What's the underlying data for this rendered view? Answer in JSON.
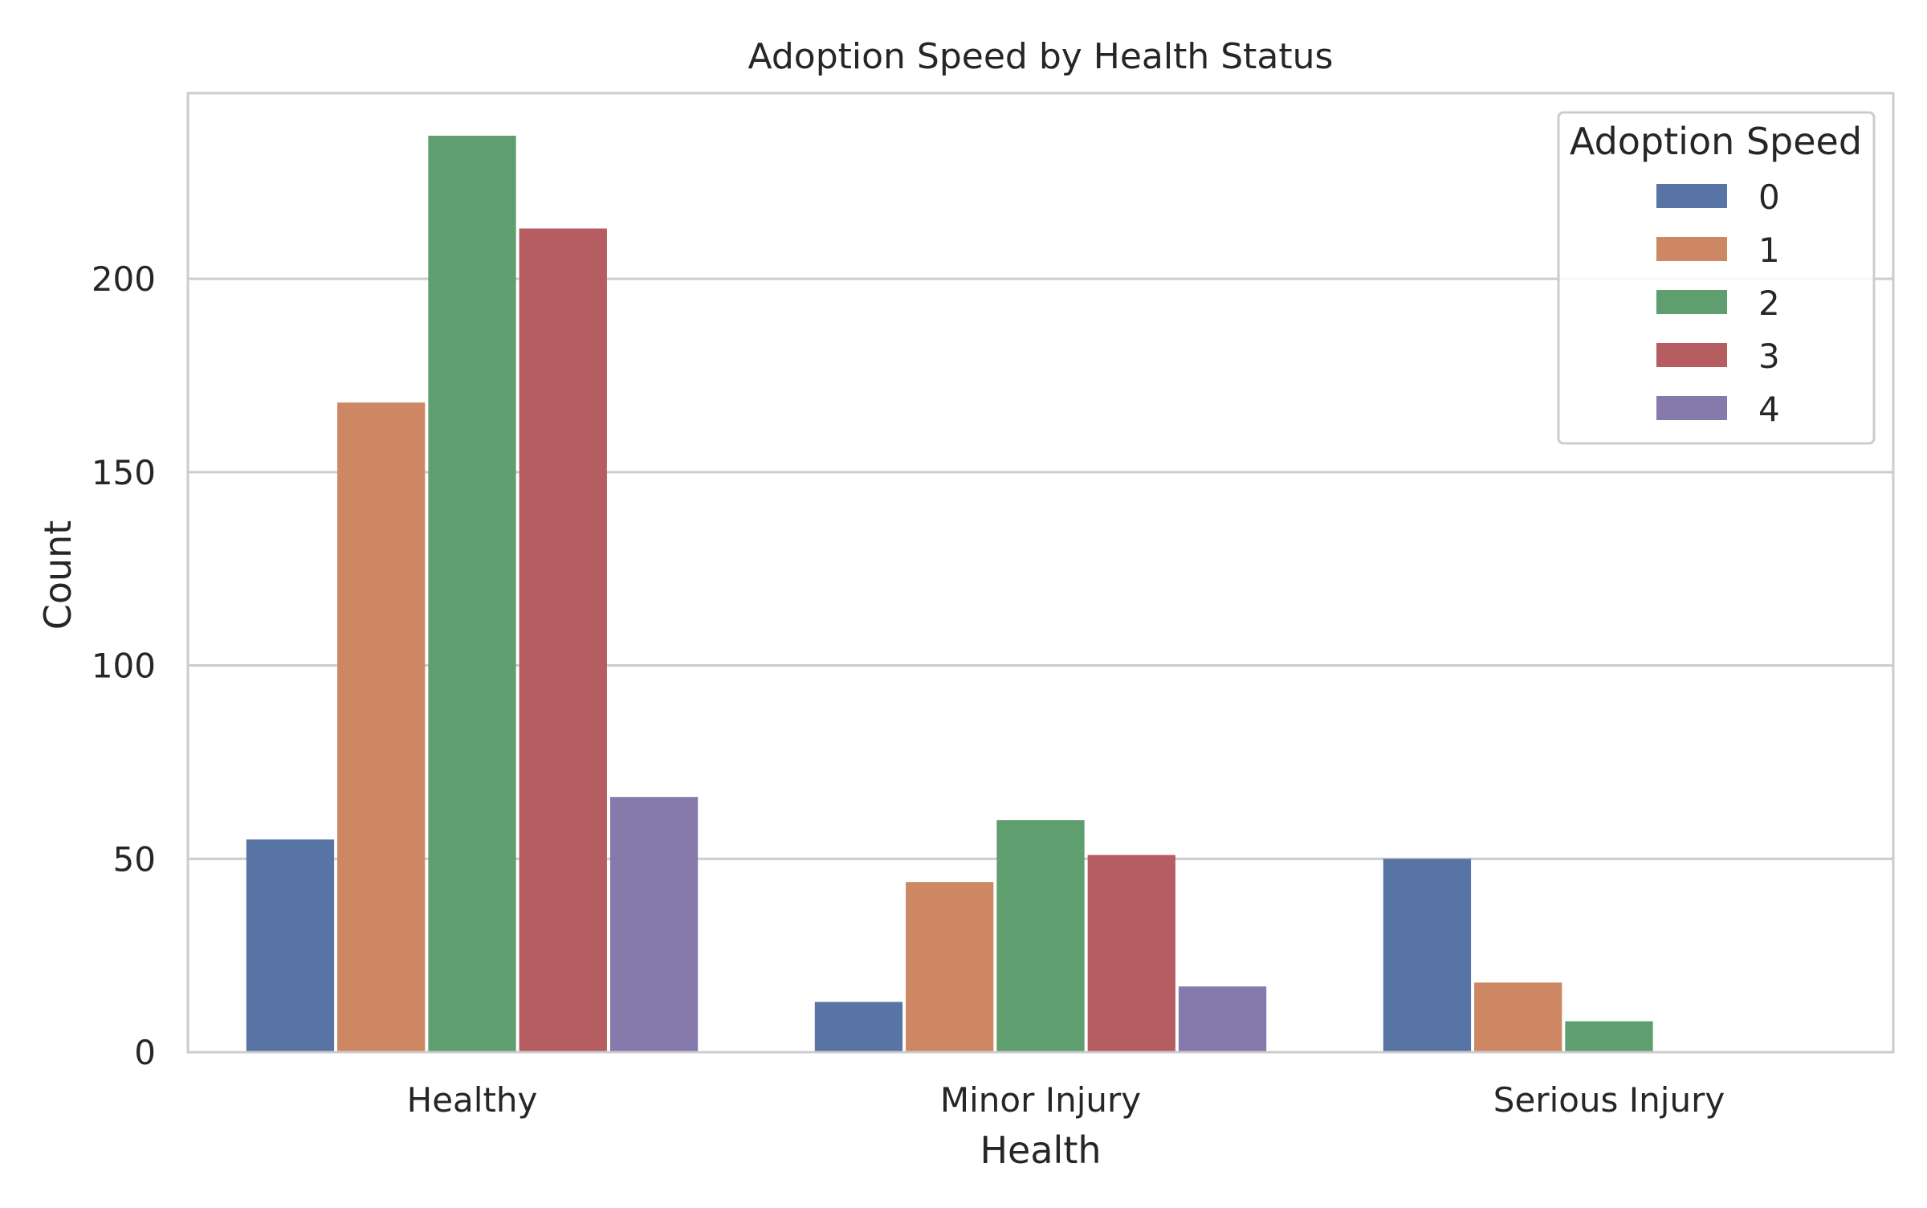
{
  "chart_data": {
    "type": "bar",
    "title": "Adoption Speed by Health Status",
    "xlabel": "Health",
    "ylabel": "Count",
    "categories": [
      "Healthy",
      "Minor Injury",
      "Serious Injury"
    ],
    "ylim": [
      0,
      248
    ],
    "yticks": [
      0,
      50,
      100,
      150,
      200
    ],
    "grid": "horizontal",
    "legend": {
      "title": "Adoption Speed",
      "placement": "top-right"
    },
    "series": [
      {
        "name": "0",
        "color": "#5874a4",
        "values": [
          55,
          13,
          50
        ]
      },
      {
        "name": "1",
        "color": "#cd8863",
        "values": [
          168,
          44,
          18
        ]
      },
      {
        "name": "2",
        "color": "#5f9e6e",
        "values": [
          237,
          60,
          8
        ]
      },
      {
        "name": "3",
        "color": "#b55d60",
        "values": [
          213,
          51,
          0
        ]
      },
      {
        "name": "4",
        "color": "#857aab",
        "values": [
          66,
          17,
          0
        ]
      }
    ]
  }
}
